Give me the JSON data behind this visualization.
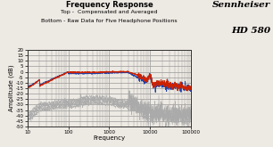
{
  "title": "Frequency Response",
  "subtitle1": "Top -  Compensated and Averaged",
  "subtitle2": "Bottom - Raw Data for Five Headphone Positions",
  "brand": "Sennheiser",
  "model": "HD 580",
  "xlabel": "Frequency",
  "ylabel": "Amplitude (dB)",
  "xlim": [
    10,
    100000
  ],
  "ylim": [
    -50,
    20
  ],
  "yticks": [
    20,
    15,
    10,
    5,
    0,
    -5,
    -10,
    -15,
    -20,
    -25,
    -30,
    -35,
    -40,
    -45,
    -50
  ],
  "xticks": [
    10,
    100,
    1000,
    10000,
    100000
  ],
  "xtick_labels": [
    "10",
    "100",
    "1000",
    "10000",
    "100000"
  ],
  "bg_color": "#ede9e3",
  "grid_color": "#999999",
  "line_red": "#cc2200",
  "line_blue": "#2244aa",
  "line_gray": "#aaaaaa",
  "title_fontsize": 6,
  "subtitle_fontsize": 4.5,
  "brand_fontsize": 7.5,
  "tick_fontsize": 4,
  "axis_label_fontsize": 5
}
